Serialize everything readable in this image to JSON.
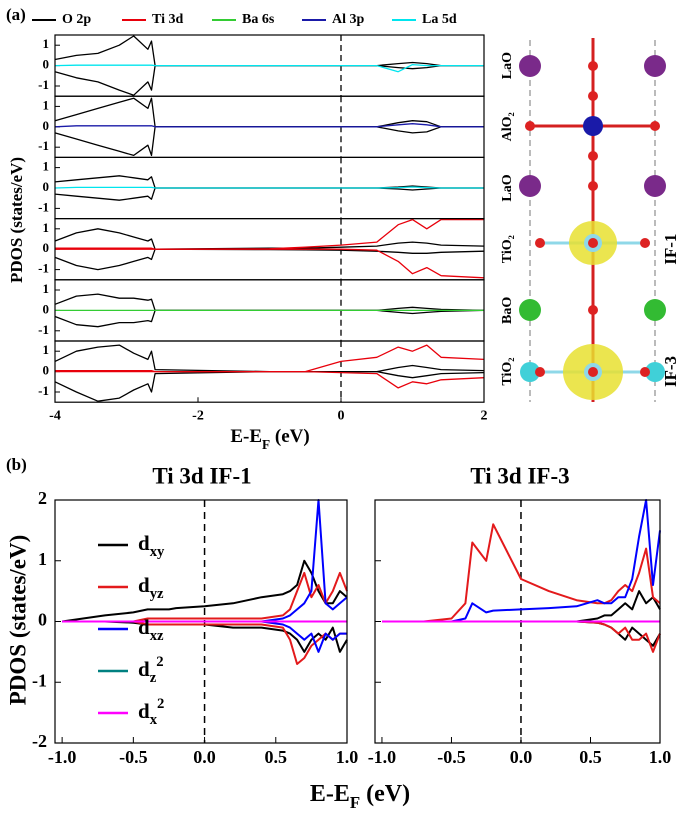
{
  "chart_data": [
    {
      "type": "line",
      "panel": "(a)",
      "xlabel": {
        "main": "E-E",
        "sub": "F",
        "unit": " (eV)"
      },
      "ylabel": "PDOS (states/eV)",
      "xlim": [
        -4,
        2
      ],
      "xticks": [
        -4,
        -2,
        0,
        2
      ],
      "legend": [
        {
          "name": "O 2p",
          "color": "#000000"
        },
        {
          "name": "Ti 3d",
          "color": "#e8000b"
        },
        {
          "name": "Ba 6s",
          "color": "#33cc33"
        },
        {
          "name": "Al 3p",
          "color": "#1a1aa8"
        },
        {
          "name": "La 5d",
          "color": "#00e5ee"
        }
      ],
      "x": [
        -4,
        -3.7,
        -3.4,
        -3.1,
        -2.9,
        -2.7,
        -2.65,
        -2.6,
        -1,
        -0.5,
        0,
        0.5,
        0.8,
        1.0,
        1.2,
        1.4,
        2
      ],
      "subplots": [
        {
          "layer": "LaO",
          "ylim": [
            -1.5,
            1.5
          ],
          "yticks": [
            -1,
            0,
            1
          ],
          "series": [
            {
              "color": "#000000",
              "values": [
                0.3,
                0.5,
                0.6,
                1.0,
                1.45,
                0.8,
                1.2,
                0,
                0,
                0,
                0,
                0,
                0.1,
                0.15,
                0.1,
                0,
                0
              ]
            },
            {
              "color": "#000000",
              "values": [
                -0.3,
                -0.6,
                -0.8,
                -1.2,
                -1.45,
                -0.8,
                -1.2,
                0,
                0,
                0,
                0,
                0,
                -0.1,
                -0.15,
                -0.1,
                0,
                0
              ]
            },
            {
              "color": "#00e5ee",
              "values": [
                0,
                0.02,
                0.02,
                0.02,
                0.02,
                0.02,
                0.02,
                0,
                0,
                0,
                0,
                0,
                -0.3,
                0.05,
                0,
                0,
                0
              ]
            }
          ]
        },
        {
          "layer": "AlO₂",
          "ylim": [
            -1.5,
            1.5
          ],
          "yticks": [
            -1,
            0,
            1
          ],
          "series": [
            {
              "color": "#000000",
              "values": [
                0.3,
                0.6,
                0.9,
                1.2,
                1.4,
                0.9,
                1.4,
                0,
                0,
                0,
                0,
                0,
                0.2,
                0.3,
                0.25,
                0,
                0
              ]
            },
            {
              "color": "#000000",
              "values": [
                -0.3,
                -0.6,
                -0.9,
                -1.2,
                -1.4,
                -0.9,
                -1.4,
                0,
                0,
                0,
                0,
                0,
                -0.2,
                -0.3,
                -0.25,
                0,
                0
              ]
            },
            {
              "color": "#1a1aa8",
              "values": [
                0,
                0.05,
                0.05,
                0.05,
                0.05,
                0.05,
                0.05,
                0,
                0,
                0,
                0,
                0,
                0.1,
                0.15,
                0.1,
                0,
                0
              ]
            }
          ]
        },
        {
          "layer": "LaO",
          "ylim": [
            -1.5,
            1.5
          ],
          "yticks": [
            -1,
            0,
            1
          ],
          "series": [
            {
              "color": "#000000",
              "values": [
                0.3,
                0.4,
                0.5,
                0.6,
                0.5,
                0.4,
                0.55,
                0,
                0,
                0,
                0,
                0,
                0.05,
                0.1,
                0.05,
                0,
                0
              ]
            },
            {
              "color": "#000000",
              "values": [
                -0.3,
                -0.4,
                -0.5,
                -0.6,
                -0.5,
                -0.4,
                -0.55,
                0,
                0,
                0,
                0,
                0,
                -0.05,
                -0.1,
                -0.05,
                0,
                0
              ]
            },
            {
              "color": "#00e5ee",
              "values": [
                0,
                0.03,
                0.03,
                0.03,
                0.03,
                0.03,
                0.03,
                0,
                0,
                0,
                0,
                0,
                0.02,
                0.05,
                0.02,
                0,
                0
              ]
            }
          ]
        },
        {
          "layer": "TiO₂",
          "interface": "IF-1",
          "ylim": [
            -1.5,
            1.5
          ],
          "yticks": [
            -1,
            0,
            1
          ],
          "series": [
            {
              "color": "#000000",
              "values": [
                0.4,
                0.8,
                1.0,
                0.8,
                0.6,
                0.4,
                0.5,
                0,
                0.05,
                0.05,
                0.1,
                0.15,
                0.3,
                0.35,
                0.3,
                0.2,
                0.15
              ]
            },
            {
              "color": "#000000",
              "values": [
                -0.4,
                -0.8,
                -1.0,
                -0.8,
                -0.6,
                -0.4,
                -0.5,
                0,
                -0.02,
                -0.03,
                -0.05,
                -0.1,
                -0.15,
                -0.2,
                -0.2,
                -0.15,
                -0.1
              ]
            },
            {
              "color": "#e8000b",
              "values": [
                0.05,
                0.05,
                0.05,
                0.05,
                0.05,
                0.05,
                0.05,
                0,
                0.02,
                0.1,
                0.2,
                0.35,
                1.2,
                1.45,
                1.0,
                1.45,
                1.45
              ]
            },
            {
              "color": "#e8000b",
              "values": [
                0,
                0,
                0,
                0,
                0,
                0,
                0,
                0,
                0,
                0,
                0,
                -0.05,
                -0.6,
                -1.2,
                -0.9,
                -1.3,
                -1.4
              ]
            }
          ]
        },
        {
          "layer": "BaO",
          "ylim": [
            -1.5,
            1.5
          ],
          "yticks": [
            -1,
            0,
            1
          ],
          "series": [
            {
              "color": "#000000",
              "values": [
                0.3,
                0.7,
                0.8,
                0.6,
                0.6,
                0.5,
                0.55,
                0,
                0,
                0,
                0,
                0,
                0.1,
                0.15,
                0.1,
                0.05,
                0
              ]
            },
            {
              "color": "#000000",
              "values": [
                -0.3,
                -0.7,
                -0.8,
                -0.6,
                -0.6,
                -0.5,
                -0.55,
                0,
                0,
                0,
                0,
                0,
                -0.1,
                -0.15,
                -0.1,
                -0.05,
                0
              ]
            },
            {
              "color": "#33cc33",
              "values": [
                0,
                0,
                0,
                0,
                0,
                0,
                0,
                0,
                0,
                0,
                0,
                0,
                0,
                0,
                0,
                0,
                0
              ]
            }
          ]
        },
        {
          "layer": "TiO₂",
          "interface": "IF-3",
          "ylim": [
            -1.5,
            1.5
          ],
          "yticks": [
            -1,
            0,
            1
          ],
          "series": [
            {
              "color": "#000000",
              "values": [
                0.5,
                1.0,
                1.2,
                1.3,
                0.9,
                0.6,
                1.0,
                0.1,
                0,
                0,
                0,
                0,
                0.2,
                0.3,
                0.2,
                0.1,
                0.05
              ]
            },
            {
              "color": "#000000",
              "values": [
                -0.5,
                -1.0,
                -1.45,
                -1.3,
                -0.9,
                -0.6,
                -1.0,
                -0.1,
                0,
                0,
                0,
                0,
                -0.2,
                -0.3,
                -0.2,
                -0.1,
                -0.05
              ]
            },
            {
              "color": "#e8000b",
              "values": [
                0.05,
                0.05,
                0.05,
                0.05,
                0.05,
                0.05,
                0.05,
                0,
                0,
                0,
                0.5,
                0.7,
                1.2,
                1.0,
                1.3,
                0.7,
                0.6
              ]
            },
            {
              "color": "#e8000b",
              "values": [
                0,
                0,
                0,
                0,
                0,
                0,
                0,
                0,
                0,
                0,
                -0.05,
                -0.1,
                -0.8,
                -0.5,
                -0.6,
                -0.4,
                -0.3
              ]
            }
          ]
        }
      ]
    },
    {
      "type": "line",
      "panel": "(b)",
      "title": "Ti 3d IF-1",
      "ylabel": "PDOS (states/eV)",
      "xlabel": {
        "main": "E-E",
        "sub": "F",
        "unit": " (eV)"
      },
      "xlim": [
        -1.05,
        1.0
      ],
      "xticks": [
        {
          "value": -1,
          "label": "-1.0"
        },
        {
          "value": -0.5,
          "label": "-0.5"
        },
        {
          "value": 0,
          "label": "0.0"
        },
        {
          "value": 0.5,
          "label": "0.5"
        },
        {
          "value": 1,
          "label": "1.0"
        }
      ],
      "ylim": [
        -2,
        2
      ],
      "yticks": [
        -2,
        -1,
        0,
        1,
        2
      ],
      "legend": [
        {
          "name": {
            "base": "d",
            "sub": "xy"
          },
          "color": "#000000"
        },
        {
          "name": {
            "base": "d",
            "sub": "yz"
          },
          "color": "#e31a1c"
        },
        {
          "name": {
            "base": "d",
            "sub": "xz"
          },
          "color": "#0000ff"
        },
        {
          "name": {
            "base": "d",
            "sub": "z",
            "sup": "2"
          },
          "color": "#008080"
        },
        {
          "name": {
            "base": "d",
            "sub": "x",
            "sup": "2"
          },
          "color": "#ff00ff"
        }
      ],
      "x": [
        -1,
        -0.7,
        -0.5,
        -0.4,
        -0.35,
        -0.25,
        -0.2,
        0,
        0.2,
        0.4,
        0.55,
        0.6,
        0.65,
        0.7,
        0.75,
        0.8,
        0.85,
        0.9,
        0.95,
        1.0
      ],
      "series": [
        {
          "color": "#000000",
          "values": [
            0,
            0.1,
            0.15,
            0.2,
            0.2,
            0.2,
            0.22,
            0.25,
            0.3,
            0.4,
            0.45,
            0.5,
            0.6,
            1.0,
            0.8,
            0.5,
            0.3,
            0.3,
            0.5,
            0.4
          ]
        },
        {
          "color": "#000000",
          "values": [
            0,
            0,
            -0.02,
            -0.05,
            -0.05,
            -0.05,
            -0.05,
            -0.05,
            -0.1,
            -0.1,
            -0.15,
            -0.2,
            -0.3,
            -0.5,
            -0.3,
            -0.2,
            -0.3,
            -0.1,
            -0.5,
            -0.3
          ]
        },
        {
          "color": "#e31a1c",
          "values": [
            0,
            0,
            0,
            0.05,
            0.05,
            0.05,
            0.05,
            0.05,
            0.05,
            0.05,
            0.1,
            0.2,
            0.5,
            0.8,
            0.4,
            0.6,
            0.3,
            0.5,
            0.8,
            0.5
          ]
        },
        {
          "color": "#e31a1c",
          "values": [
            0,
            0,
            0,
            -0.05,
            -0.05,
            -0.05,
            -0.05,
            -0.05,
            -0.05,
            -0.05,
            -0.1,
            -0.3,
            -0.7,
            -0.6,
            -0.4,
            -0.3,
            -0.2,
            -0.3,
            -0.2,
            -0.2
          ]
        },
        {
          "color": "#0000ff",
          "values": [
            0,
            0,
            0,
            0,
            0,
            0,
            0,
            0,
            0,
            0,
            0.05,
            0.1,
            0.2,
            0.3,
            0.5,
            2.0,
            0.3,
            0.2,
            0.3,
            0.4
          ]
        },
        {
          "color": "#0000ff",
          "values": [
            0,
            0,
            0,
            0,
            0,
            0,
            0,
            0,
            0,
            0,
            -0.05,
            -0.1,
            -0.2,
            -0.3,
            -0.2,
            -0.5,
            -0.2,
            -0.3,
            -0.2,
            -0.2
          ]
        },
        {
          "color": "#ff00ff",
          "values": [
            0,
            0,
            0,
            0,
            0,
            0,
            0,
            0,
            0,
            0,
            0,
            0,
            0,
            0,
            0,
            0,
            0,
            0,
            0,
            0
          ]
        }
      ]
    },
    {
      "type": "line",
      "title": "Ti 3d IF-3",
      "xlim": [
        -1.05,
        1.0
      ],
      "xticks": [
        {
          "value": -1,
          "label": "-1.0"
        },
        {
          "value": -0.5,
          "label": "-0.5"
        },
        {
          "value": 0,
          "label": "0.0"
        },
        {
          "value": 0.5,
          "label": "0.5"
        },
        {
          "value": 1,
          "label": "1.0"
        }
      ],
      "ylim": [
        -2,
        2
      ],
      "yticks": [
        -2,
        -1,
        0,
        1,
        2
      ],
      "x": [
        -1,
        -0.7,
        -0.5,
        -0.4,
        -0.35,
        -0.25,
        -0.2,
        0,
        0.2,
        0.4,
        0.55,
        0.6,
        0.65,
        0.7,
        0.75,
        0.8,
        0.85,
        0.9,
        0.95,
        1.0
      ],
      "series": [
        {
          "color": "#000000",
          "values": [
            0,
            0,
            0,
            0,
            0,
            0,
            0,
            0,
            0,
            0,
            0.05,
            0.1,
            0.1,
            0.2,
            0.3,
            0.2,
            0.5,
            0.3,
            0.4,
            0.2
          ]
        },
        {
          "color": "#000000",
          "values": [
            0,
            0,
            0,
            0,
            0,
            0,
            0,
            0,
            0,
            0,
            -0.02,
            -0.05,
            -0.1,
            -0.2,
            -0.3,
            -0.1,
            -0.2,
            -0.3,
            -0.4,
            -0.2
          ]
        },
        {
          "color": "#e31a1c",
          "values": [
            0,
            0,
            0.05,
            0.3,
            1.3,
            1.0,
            1.6,
            0.7,
            0.5,
            0.35,
            0.3,
            0.3,
            0.35,
            0.5,
            0.6,
            0.5,
            0.8,
            1.2,
            0.4,
            0.3
          ]
        },
        {
          "color": "#e31a1c",
          "values": [
            0,
            0,
            0,
            0,
            0,
            0,
            0,
            0,
            0,
            0,
            -0.02,
            -0.05,
            -0.1,
            -0.2,
            -0.1,
            -0.3,
            -0.3,
            -0.2,
            -0.5,
            -0.2
          ]
        },
        {
          "color": "#0000ff",
          "values": [
            0,
            0,
            0,
            0.05,
            0.3,
            0.15,
            0.18,
            0.2,
            0.22,
            0.25,
            0.35,
            0.3,
            0.3,
            0.4,
            0.4,
            0.7,
            1.4,
            2.0,
            0.6,
            1.5
          ]
        },
        {
          "color": "#ff00ff",
          "values": [
            0,
            0,
            0,
            0,
            0,
            0,
            0,
            0,
            0,
            0,
            0,
            0,
            0,
            0,
            0,
            0,
            0,
            0,
            0,
            0
          ]
        }
      ]
    }
  ]
}
